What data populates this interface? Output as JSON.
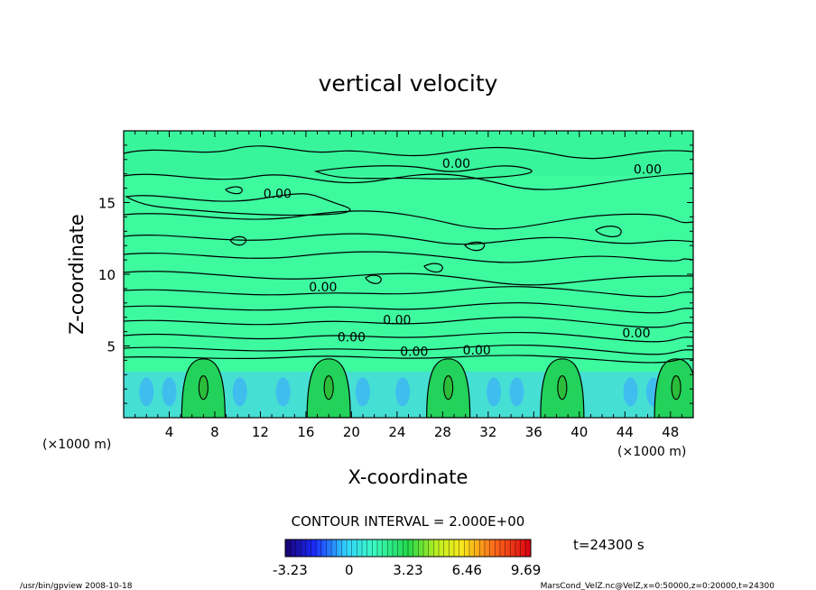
{
  "chart_data": {
    "type": "heatmap",
    "title": "vertical velocity",
    "xlabel": "X-coordinate",
    "ylabel": "Z-coordinate",
    "x_unit": "(×1000 m)",
    "y_unit": "(×1000 m)",
    "xlim": [
      0,
      50
    ],
    "ylim": [
      0,
      20
    ],
    "x_ticks": [
      "4",
      "8",
      "12",
      "16",
      "20",
      "24",
      "28",
      "32",
      "36",
      "40",
      "44",
      "48"
    ],
    "y_ticks": [
      "5",
      "10",
      "15"
    ],
    "contour_interval_label": "CONTOUR INTERVAL = 2.000E+00",
    "contour_labels": [
      {
        "text": "0.00",
        "x": 29.2,
        "z": 17.6
      },
      {
        "text": "0.00",
        "x": 46.0,
        "z": 17.2
      },
      {
        "text": "0.00",
        "x": 13.5,
        "z": 15.5
      },
      {
        "text": "0.00",
        "x": 17.5,
        "z": 9.0
      },
      {
        "text": "0.00",
        "x": 24.0,
        "z": 6.7
      },
      {
        "text": "0.00",
        "x": 20.0,
        "z": 5.5
      },
      {
        "text": "0.00",
        "x": 25.5,
        "z": 4.5
      },
      {
        "text": "0.00",
        "x": 31.0,
        "z": 4.6
      },
      {
        "text": "0.00",
        "x": 45.0,
        "z": 5.8
      }
    ],
    "updraft_cells_x": [
      7,
      18,
      28.5,
      38.5,
      48.5
    ],
    "colorbar": {
      "min": -3.23,
      "max": 9.69,
      "tick_labels": [
        "-3.23",
        "0",
        "3.23",
        "6.46",
        "9.69"
      ],
      "tick_values": [
        -3.23,
        0,
        3.23,
        6.46,
        9.69
      ]
    },
    "time_label": "t=24300 s",
    "colors": {
      "background_field": "#3dfa9f",
      "upper_field": "#33f09a",
      "updraft": "#22d25a",
      "downdraft": "#4fc8ff"
    }
  },
  "footer": {
    "left": "/usr/bin/gpview   2008-10-18",
    "right": "MarsCond_VelZ.nc@VelZ,x=0:50000,z=0:20000,t=24300"
  }
}
